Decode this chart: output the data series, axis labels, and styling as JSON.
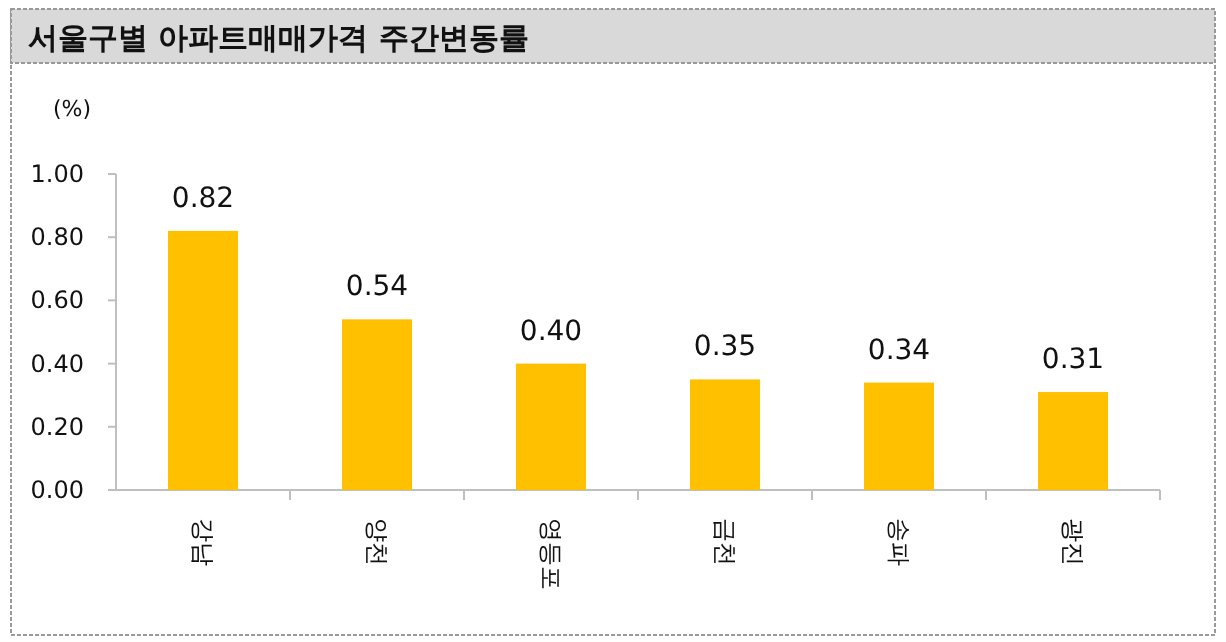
{
  "chart_data": {
    "type": "bar",
    "title": "서울구별 아파트매매가격 주간변동률",
    "ylabel": "(%)",
    "categories": [
      "강남",
      "양천",
      "영등포",
      "금천",
      "송파",
      "광진"
    ],
    "values": [
      0.82,
      0.54,
      0.4,
      0.35,
      0.34,
      0.31
    ],
    "value_labels": [
      "0.82",
      "0.54",
      "0.40",
      "0.35",
      "0.34",
      "0.31"
    ],
    "color": "#ffc000",
    "ylim": [
      0,
      1
    ],
    "yticks": [
      {
        "value": 0,
        "label": "0.00"
      },
      {
        "value": 0.2,
        "label": "0.20"
      },
      {
        "value": 0.4,
        "label": "0.40"
      },
      {
        "value": 0.6,
        "label": "0.60"
      },
      {
        "value": 0.8,
        "label": "0.80"
      },
      {
        "value": 1,
        "label": "1.00"
      }
    ],
    "grid": false
  }
}
